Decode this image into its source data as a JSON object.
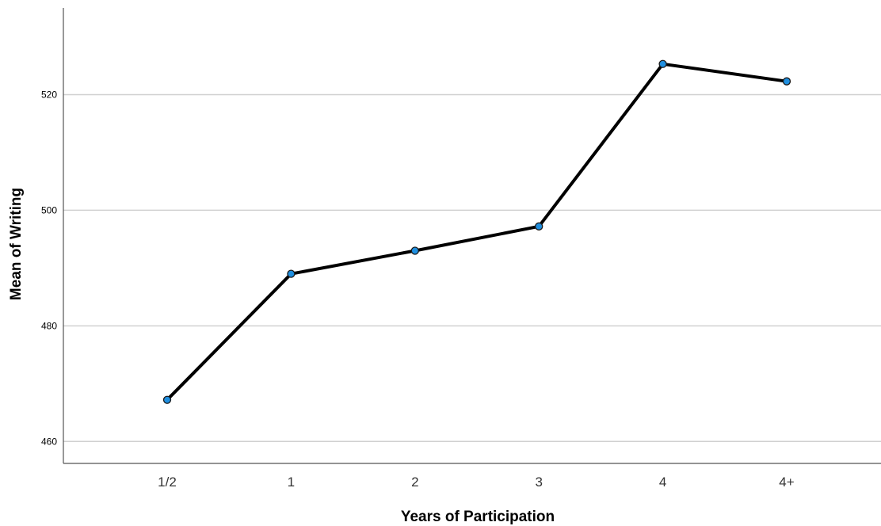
{
  "chart_data": {
    "type": "line",
    "categories": [
      "1/2",
      "1",
      "2",
      "3",
      "4",
      "4+"
    ],
    "series": [
      {
        "values": [
          467.2,
          489.0,
          493.0,
          497.2,
          525.3,
          522.3
        ]
      }
    ],
    "xlabel": "Years of Participation",
    "ylabel": "Mean of Writing",
    "ylim": [
      456.2,
      535.0
    ],
    "yticks": [
      460,
      480,
      500,
      520
    ],
    "grid": "horizontal",
    "colors": {
      "line": "#000000",
      "marker_fill": "#1f8fe0",
      "marker_stroke": "#1a1a1a",
      "grid": "#d0d0d0",
      "axis": "#555555"
    }
  }
}
